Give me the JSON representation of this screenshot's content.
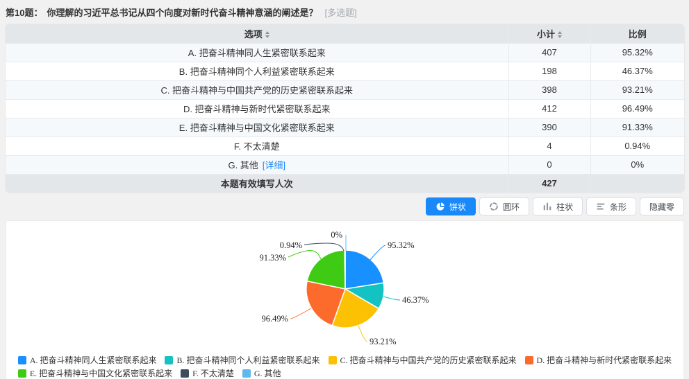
{
  "question": {
    "number_label": "第10题：",
    "text": "你理解的习近平总书记从四个向度对新时代奋斗精神意涵的阐述是？",
    "type_tag": "[多选题]"
  },
  "table": {
    "columns": [
      {
        "label": "选项",
        "sortable": true
      },
      {
        "label": "小计",
        "sortable": true
      },
      {
        "label": "比例",
        "sortable": false
      }
    ],
    "rows": [
      {
        "option": "A. 把奋斗精神同人生紧密联系起来",
        "count": "407",
        "ratio": "95.32%"
      },
      {
        "option": "B. 把奋斗精神同个人利益紧密联系起来",
        "count": "198",
        "ratio": "46.37%"
      },
      {
        "option": "C. 把奋斗精神与中国共产党的历史紧密联系起来",
        "count": "398",
        "ratio": "93.21%"
      },
      {
        "option": "D. 把奋斗精神与新时代紧密联系起来",
        "count": "412",
        "ratio": "96.49%"
      },
      {
        "option": "E. 把奋斗精神与中国文化紧密联系起来",
        "count": "390",
        "ratio": "91.33%"
      },
      {
        "option": "F. 不太清楚",
        "count": "4",
        "ratio": "0.94%"
      },
      {
        "option": "G. 其他",
        "detail_link": "[详细]",
        "count": "0",
        "ratio": "0%"
      }
    ],
    "footer": {
      "label": "本题有效填写人次",
      "count": "427"
    }
  },
  "toolbar": {
    "buttons": [
      {
        "label": "饼状",
        "icon": "pie-icon",
        "active": true
      },
      {
        "label": "圆环",
        "icon": "ring-icon",
        "active": false
      },
      {
        "label": "柱状",
        "icon": "column-icon",
        "active": false
      },
      {
        "label": "条形",
        "icon": "bar-icon",
        "active": false
      },
      {
        "label": "隐藏零",
        "icon": null,
        "active": false
      }
    ],
    "active_color": "#1989fa"
  },
  "chart_data": {
    "type": "pie",
    "categories": [
      "A. 把奋斗精神同人生紧密联系起来",
      "B. 把奋斗精神同个人利益紧密联系起来",
      "C. 把奋斗精神与中国共产党的历史紧密联系起来",
      "D. 把奋斗精神与新时代紧密联系起来",
      "E. 把奋斗精神与中国文化紧密联系起来",
      "F. 不太清楚",
      "G. 其他"
    ],
    "values": [
      407,
      198,
      398,
      412,
      390,
      4,
      0
    ],
    "percent_labels": [
      "95.32%",
      "46.37%",
      "93.21%",
      "96.49%",
      "91.33%",
      "0.94%",
      "0%"
    ],
    "colors": [
      "#1890ff",
      "#13c2c2",
      "#fdc104",
      "#fc6b2c",
      "#3fcb14",
      "#3e4d5c",
      "#62b8ec"
    ],
    "legend_position": "bottom",
    "legend_rows": [
      [
        0,
        1,
        2,
        3
      ],
      [
        4,
        5,
        6
      ]
    ],
    "title": "",
    "xlabel": "",
    "ylabel": ""
  }
}
